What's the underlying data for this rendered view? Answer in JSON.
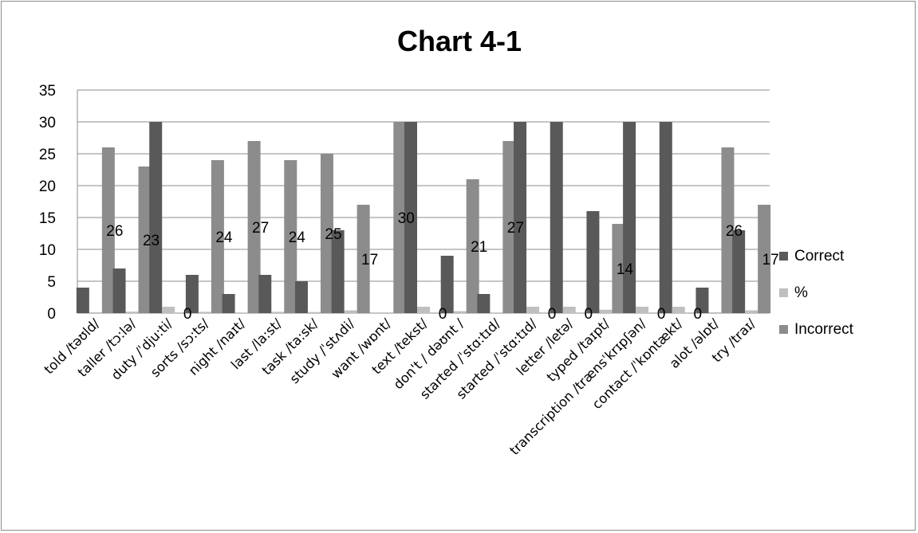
{
  "chart_data": {
    "type": "bar",
    "title": "Chart 4-1",
    "categories": [
      "told /təʊld/",
      "taller /tɔ:lə/",
      "duty /ˈdju:ti/",
      "sorts /sɔ:ts/",
      "night /naɪt/",
      "last /la:st/",
      "task /ta:sk/",
      "study /ˈstʌdi/",
      "want  /wɒnt/",
      "text /tekst/",
      "don't / dəʊnt /",
      "started /ˈstɑ:tɪd/",
      "started /ˈstɑ:tɪd/",
      "letter /letə/",
      "typed /taɪpt/",
      "transcription /trænsˈkrɪpʃən/",
      "contact /ˈkɒntækt/",
      "alot /əlɒt/",
      "try /traɪ/"
    ],
    "series": [
      {
        "name": "Correct",
        "color": "#595959",
        "values": [
          4,
          7,
          30,
          6,
          3,
          6,
          5,
          13,
          0,
          30,
          9,
          3,
          30,
          30,
          16,
          30,
          30,
          4,
          13
        ]
      },
      {
        "name": "%",
        "color": "#bfbfbf",
        "values": [
          0.13,
          0.23,
          1,
          0.2,
          0.1,
          0.2,
          0.17,
          0.43,
          0,
          1,
          0.3,
          0.1,
          1,
          1,
          0.53,
          1,
          1,
          0.13,
          0.43
        ]
      },
      {
        "name": "Incorrect",
        "color": "#8c8c8c",
        "values": [
          26,
          23,
          0,
          24,
          27,
          24,
          25,
          17,
          30,
          0,
          21,
          27,
          0,
          0,
          14,
          0,
          0,
          26,
          17
        ]
      }
    ],
    "data_labels": [
      "26",
      "23",
      "0",
      "24",
      "27",
      "24",
      "25",
      "17",
      "30",
      "0",
      "21",
      "27",
      "0",
      "0",
      "14",
      "0",
      "0",
      "26",
      "17"
    ],
    "y_ticks": [
      "0",
      "5",
      "10",
      "15",
      "20",
      "25",
      "30",
      "35"
    ],
    "ylim": [
      0,
      35
    ],
    "grid": true,
    "legend_position": "right"
  }
}
